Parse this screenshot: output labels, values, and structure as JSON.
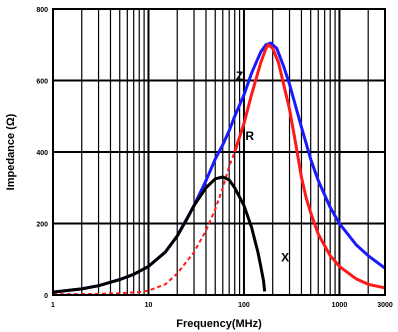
{
  "chart_data": {
    "type": "line",
    "title": "",
    "xlabel": "Frequency(MHz)",
    "ylabel": "Impedance (Ω)",
    "xscale": "log",
    "xlim": [
      1,
      3000
    ],
    "ylim": [
      0,
      800
    ],
    "grid": true,
    "x_ticks": [
      {
        "value": 1,
        "label": "1"
      },
      {
        "value": 10,
        "label": "10"
      },
      {
        "value": 100,
        "label": "100"
      },
      {
        "value": 1000,
        "label": "1000"
      },
      {
        "value": 3000,
        "label": "3000"
      }
    ],
    "y_ticks": [
      {
        "value": 0,
        "label": "0"
      },
      {
        "value": 200,
        "label": "200"
      },
      {
        "value": 400,
        "label": "400"
      },
      {
        "value": 600,
        "label": "600"
      },
      {
        "value": 800,
        "label": "800"
      }
    ],
    "series": [
      {
        "name": "Z",
        "color": "#1a1aff",
        "style": "solid",
        "label_at": {
          "x": 90,
          "y": 612
        },
        "points": [
          [
            1,
            8
          ],
          [
            2,
            17
          ],
          [
            3,
            26
          ],
          [
            5,
            43
          ],
          [
            7,
            58
          ],
          [
            10,
            80
          ],
          [
            15,
            120
          ],
          [
            20,
            165
          ],
          [
            30,
            250
          ],
          [
            40,
            320
          ],
          [
            50,
            380
          ],
          [
            60,
            420
          ],
          [
            70,
            460
          ],
          [
            80,
            500
          ],
          [
            100,
            560
          ],
          [
            120,
            620
          ],
          [
            150,
            680
          ],
          [
            170,
            700
          ],
          [
            190,
            705
          ],
          [
            220,
            690
          ],
          [
            260,
            640
          ],
          [
            300,
            590
          ],
          [
            400,
            470
          ],
          [
            500,
            380
          ],
          [
            600,
            320
          ],
          [
            800,
            245
          ],
          [
            1000,
            200
          ],
          [
            1500,
            140
          ],
          [
            2000,
            110
          ],
          [
            3000,
            75
          ]
        ]
      },
      {
        "name": "R",
        "color": "#ff1a1a",
        "style": "dashed-then-solid",
        "dash_until_x": 80,
        "label_at": {
          "x": 115,
          "y": 445
        },
        "points": [
          [
            1,
            2
          ],
          [
            3,
            3
          ],
          [
            5,
            5
          ],
          [
            8,
            8
          ],
          [
            10,
            12
          ],
          [
            15,
            30
          ],
          [
            20,
            60
          ],
          [
            30,
            120
          ],
          [
            40,
            180
          ],
          [
            50,
            240
          ],
          [
            60,
            300
          ],
          [
            70,
            360
          ],
          [
            80,
            400
          ],
          [
            100,
            480
          ],
          [
            120,
            560
          ],
          [
            150,
            650
          ],
          [
            170,
            690
          ],
          [
            180,
            700
          ],
          [
            200,
            690
          ],
          [
            230,
            650
          ],
          [
            260,
            590
          ],
          [
            300,
            520
          ],
          [
            350,
            420
          ],
          [
            400,
            330
          ],
          [
            450,
            270
          ],
          [
            500,
            230
          ],
          [
            600,
            170
          ],
          [
            800,
            110
          ],
          [
            1000,
            80
          ],
          [
            1500,
            45
          ],
          [
            2000,
            30
          ],
          [
            3000,
            20
          ]
        ]
      },
      {
        "name": "X",
        "color": "#000000",
        "style": "solid",
        "label_at": {
          "x": 270,
          "y": 105
        },
        "points": [
          [
            1,
            8
          ],
          [
            2,
            17
          ],
          [
            3,
            26
          ],
          [
            5,
            43
          ],
          [
            7,
            58
          ],
          [
            10,
            80
          ],
          [
            15,
            120
          ],
          [
            20,
            165
          ],
          [
            25,
            210
          ],
          [
            30,
            250
          ],
          [
            40,
            300
          ],
          [
            50,
            325
          ],
          [
            60,
            330
          ],
          [
            70,
            322
          ],
          [
            80,
            300
          ],
          [
            100,
            250
          ],
          [
            120,
            190
          ],
          [
            140,
            120
          ],
          [
            150,
            80
          ],
          [
            160,
            40
          ],
          [
            165,
            10
          ]
        ]
      }
    ]
  }
}
